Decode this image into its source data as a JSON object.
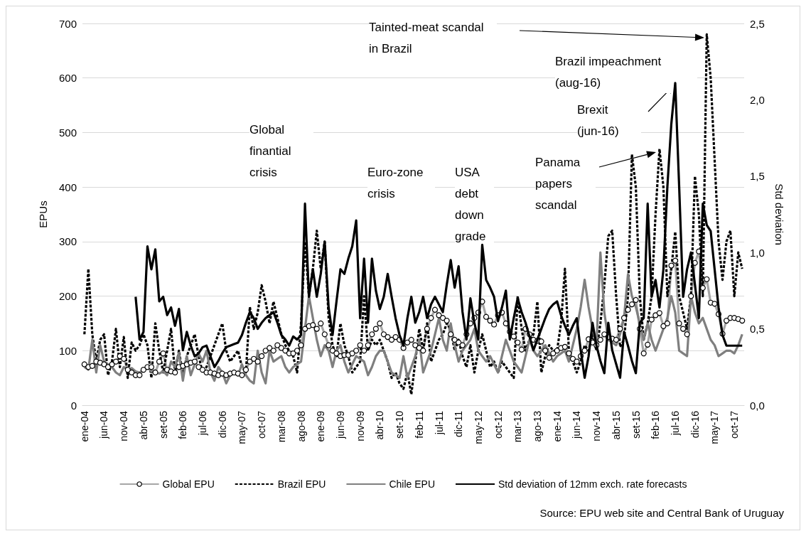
{
  "chart_data": {
    "type": "line",
    "ylabel": "EPUs",
    "y2label": "Std deviation",
    "ylim": [
      0,
      700
    ],
    "yticks": [
      0,
      100,
      200,
      300,
      400,
      500,
      600,
      700
    ],
    "y2lim": [
      0,
      2.5
    ],
    "y2ticks": [
      {
        "value": 0,
        "label": "0,0"
      },
      {
        "value": 0.5,
        "label": "0,5"
      },
      {
        "value": 1,
        "label": "1,0"
      },
      {
        "value": 1.5,
        "label": "1,5"
      },
      {
        "value": 2,
        "label": "2,0"
      },
      {
        "value": 2.5,
        "label": "2,5"
      }
    ],
    "grid": "y",
    "legend": "bottom",
    "categories": [
      "ene-04",
      null,
      null,
      null,
      null,
      "jun-04",
      null,
      null,
      null,
      null,
      "nov-04",
      null,
      null,
      null,
      null,
      "abr-05",
      null,
      null,
      null,
      null,
      "set-05",
      null,
      null,
      null,
      null,
      "feb-06",
      null,
      null,
      null,
      null,
      "jul-06",
      null,
      null,
      null,
      null,
      "dic-06",
      null,
      null,
      null,
      null,
      "may-07",
      null,
      null,
      null,
      null,
      "oct-07",
      null,
      null,
      null,
      null,
      "mar-08",
      null,
      null,
      null,
      null,
      "ago-08",
      null,
      null,
      null,
      null,
      "ene-09",
      null,
      null,
      null,
      null,
      "jun-09",
      null,
      null,
      null,
      null,
      "nov-09",
      null,
      null,
      null,
      null,
      "abr-10",
      null,
      null,
      null,
      null,
      "set-10",
      null,
      null,
      null,
      null,
      "feb-11",
      null,
      null,
      null,
      null,
      "jul-11",
      null,
      null,
      null,
      null,
      "dic-11",
      null,
      null,
      null,
      null,
      "may-12",
      null,
      null,
      null,
      null,
      "oct-12",
      null,
      null,
      null,
      null,
      "mar-13",
      null,
      null,
      null,
      null,
      "ago-13",
      null,
      null,
      null,
      null,
      "ene-14",
      null,
      null,
      null,
      null,
      "jun-14",
      null,
      null,
      null,
      null,
      "nov-14",
      null,
      null,
      null,
      null,
      "abr-15",
      null,
      null,
      null,
      null,
      "set-15",
      null,
      null,
      null,
      null,
      "feb-16",
      null,
      null,
      null,
      null,
      "jul-16",
      null,
      null,
      null,
      null,
      "dic-16",
      null,
      null,
      null,
      null,
      "may-17",
      null,
      null,
      null,
      null,
      "oct-17",
      null,
      null
    ],
    "series": [
      {
        "name": "Global EPU",
        "color": "#a6a6a6",
        "marker": "circle",
        "line_style": "solid",
        "values": [
          75,
          70,
          72,
          80,
          78,
          75,
          70,
          75,
          80,
          90,
          85,
          65,
          60,
          55,
          55,
          65,
          70,
          70,
          60,
          80,
          95,
          65,
          62,
          60,
          70,
          72,
          75,
          78,
          80,
          70,
          65,
          60,
          60,
          58,
          55,
          58,
          55,
          58,
          60,
          58,
          55,
          65,
          80,
          85,
          80,
          90,
          100,
          105,
          100,
          110,
          105,
          100,
          95,
          95,
          100,
          110,
          140,
          145,
          147,
          140,
          150,
          130,
          110,
          100,
          95,
          90,
          92,
          92,
          95,
          100,
          110,
          100,
          110,
          130,
          140,
          150,
          130,
          125,
          120,
          125,
          120,
          105,
          115,
          120,
          110,
          105,
          100,
          140,
          160,
          175,
          165,
          160,
          155,
          130,
          120,
          115,
          110,
          130,
          150,
          160,
          170,
          190,
          162,
          155,
          148,
          165,
          170,
          150,
          135,
          126,
          115,
          102,
          140,
          130,
          120,
          118,
          117,
          100,
          87,
          95,
          100,
          105,
          107,
          95,
          85,
          80,
          90,
          100,
          121,
          115,
          110,
          120,
          130,
          125,
          122,
          120,
          140,
          160,
          175,
          185,
          193,
          140,
          95,
          111,
          157,
          165,
          169,
          145,
          150,
          256,
          265,
          150,
          140,
          130,
          200,
          261,
          282,
          215,
          231,
          188,
          186,
          167,
          131,
          155,
          160,
          160,
          158,
          155
        ]
      },
      {
        "name": "Brazil EPU",
        "color": "#000000",
        "marker": "none",
        "line_style": "dashed",
        "values": [
          130,
          250,
          130,
          80,
          120,
          130,
          55,
          80,
          140,
          70,
          125,
          50,
          115,
          100,
          110,
          130,
          110,
          50,
          150,
          100,
          60,
          100,
          140,
          60,
          100,
          55,
          90,
          110,
          130,
          90,
          60,
          70,
          90,
          110,
          130,
          150,
          100,
          80,
          90,
          100,
          70,
          60,
          180,
          140,
          170,
          220,
          190,
          150,
          190,
          160,
          130,
          110,
          100,
          90,
          60,
          150,
          300,
          200,
          250,
          320,
          250,
          300,
          160,
          110,
          90,
          150,
          110,
          90,
          60,
          70,
          80,
          200,
          100,
          120,
          110,
          120,
          100,
          80,
          50,
          60,
          40,
          30,
          60,
          20,
          80,
          140,
          100,
          150,
          80,
          100,
          120,
          130,
          150,
          140,
          100,
          120,
          90,
          70,
          110,
          60,
          100,
          130,
          100,
          70,
          80,
          60,
          80,
          70,
          60,
          50,
          200,
          140,
          100,
          120,
          130,
          190,
          60,
          90,
          110,
          100,
          100,
          150,
          250,
          100,
          80,
          60,
          80,
          110,
          100,
          130,
          100,
          150,
          220,
          310,
          320,
          200,
          107,
          120,
          200,
          460,
          400,
          200,
          120,
          150,
          200,
          350,
          470,
          400,
          200,
          250,
          318,
          200,
          170,
          140,
          200,
          420,
          350,
          200,
          680,
          600,
          450,
          300,
          230,
          300,
          320,
          200,
          280,
          250
        ]
      },
      {
        "name": "Chile EPU",
        "color": "#7f7f7f",
        "marker": "none",
        "line_style": "solid",
        "values": [
          70,
          65,
          120,
          60,
          110,
          80,
          75,
          70,
          60,
          55,
          70,
          65,
          68,
          62,
          60,
          65,
          70,
          62,
          60,
          58,
          62,
          55,
          80,
          70,
          96,
          45,
          90,
          55,
          75,
          95,
          80,
          100,
          60,
          45,
          70,
          60,
          40,
          55,
          60,
          55,
          75,
          55,
          45,
          40,
          100,
          60,
          40,
          100,
          80,
          85,
          90,
          70,
          60,
          70,
          75,
          80,
          140,
          200,
          160,
          120,
          90,
          110,
          100,
          70,
          100,
          110,
          80,
          60,
          75,
          90,
          85,
          80,
          55,
          70,
          90,
          100,
          100,
          80,
          60,
          55,
          50,
          90,
          50,
          70,
          90,
          120,
          60,
          80,
          100,
          130,
          160,
          120,
          100,
          150,
          110,
          80,
          100,
          110,
          120,
          140,
          100,
          90,
          80,
          90,
          75,
          60,
          90,
          120,
          100,
          80,
          70,
          60,
          90,
          120,
          100,
          90,
          100,
          110,
          95,
          80,
          90,
          95,
          100,
          80,
          110,
          140,
          180,
          230,
          180,
          140,
          110,
          280,
          170,
          120,
          115,
          110,
          130,
          160,
          240,
          200,
          180,
          150,
          120,
          150,
          120,
          100,
          120,
          140,
          160,
          200,
          170,
          100,
          95,
          90,
          200,
          170,
          150,
          160,
          140,
          120,
          110,
          90,
          95,
          100,
          100,
          95,
          110,
          130
        ]
      },
      {
        "name": "Std deviation of 12mm exch. rate forecasts",
        "color": "#000000",
        "marker": "none",
        "line_style": "solid",
        "axis": "y2",
        "values": [
          null,
          null,
          null,
          null,
          null,
          null,
          null,
          null,
          null,
          null,
          null,
          null,
          null,
          0.71,
          0.43,
          0.48,
          1.04,
          0.89,
          1.02,
          0.68,
          0.71,
          0.59,
          0.64,
          0.52,
          0.63,
          0.36,
          0.48,
          0.39,
          0.32,
          0.34,
          0.38,
          0.39,
          0.32,
          0.25,
          0.29,
          0.34,
          0.38,
          0.39,
          0.4,
          0.41,
          0.46,
          0.54,
          0.61,
          0.57,
          0.5,
          0.54,
          0.57,
          0.59,
          0.61,
          0.54,
          0.46,
          0.43,
          0.39,
          0.45,
          0.43,
          0.46,
          1.32,
          0.71,
          0.89,
          0.71,
          0.86,
          1.07,
          0.64,
          0.46,
          0.68,
          0.89,
          0.86,
          0.96,
          1.04,
          1.21,
          0.57,
          0.96,
          0.54,
          0.96,
          0.75,
          0.63,
          0.71,
          0.86,
          0.71,
          0.57,
          0.46,
          0.39,
          0.57,
          0.71,
          0.54,
          0.61,
          0.71,
          0.57,
          0.66,
          0.71,
          0.66,
          0.61,
          0.79,
          0.95,
          0.77,
          0.91,
          0.61,
          0.43,
          0.7,
          0.54,
          0.43,
          1.05,
          0.82,
          0.77,
          0.71,
          0.55,
          0.64,
          0.75,
          0.43,
          0.57,
          0.7,
          0.61,
          0.54,
          0.45,
          0.36,
          0.43,
          0.5,
          0.57,
          0.63,
          0.66,
          0.68,
          0.59,
          0.52,
          0.46,
          0.52,
          0.57,
          0.36,
          0.18,
          0.32,
          0.54,
          0.39,
          0.29,
          0.21,
          0.54,
          0.36,
          0.27,
          0.18,
          0.48,
          0.39,
          0.29,
          0.21,
          0.54,
          0.57,
          1.32,
          0.71,
          0.82,
          0.64,
          0.89,
          1.43,
          1.84,
          2.11,
          1.43,
          0.71,
          0.89,
          1.0,
          0.79,
          0.57,
          1.32,
          1.18,
          1.14,
          0.89,
          0.64,
          0.46,
          0.39,
          0.39,
          0.39,
          0.39,
          0.39
        ]
      }
    ],
    "annotations": [
      "Tainted-meat scandal in Brazil",
      "Brazil impeachment (aug-16)",
      "Brexit (jun-16)",
      "Global finantial crisis",
      "Euro-zone crisis",
      "USA debt down grade",
      "Panama papers scandal",
      "Source: EPU web site and Central Bank of Uruguay"
    ]
  }
}
